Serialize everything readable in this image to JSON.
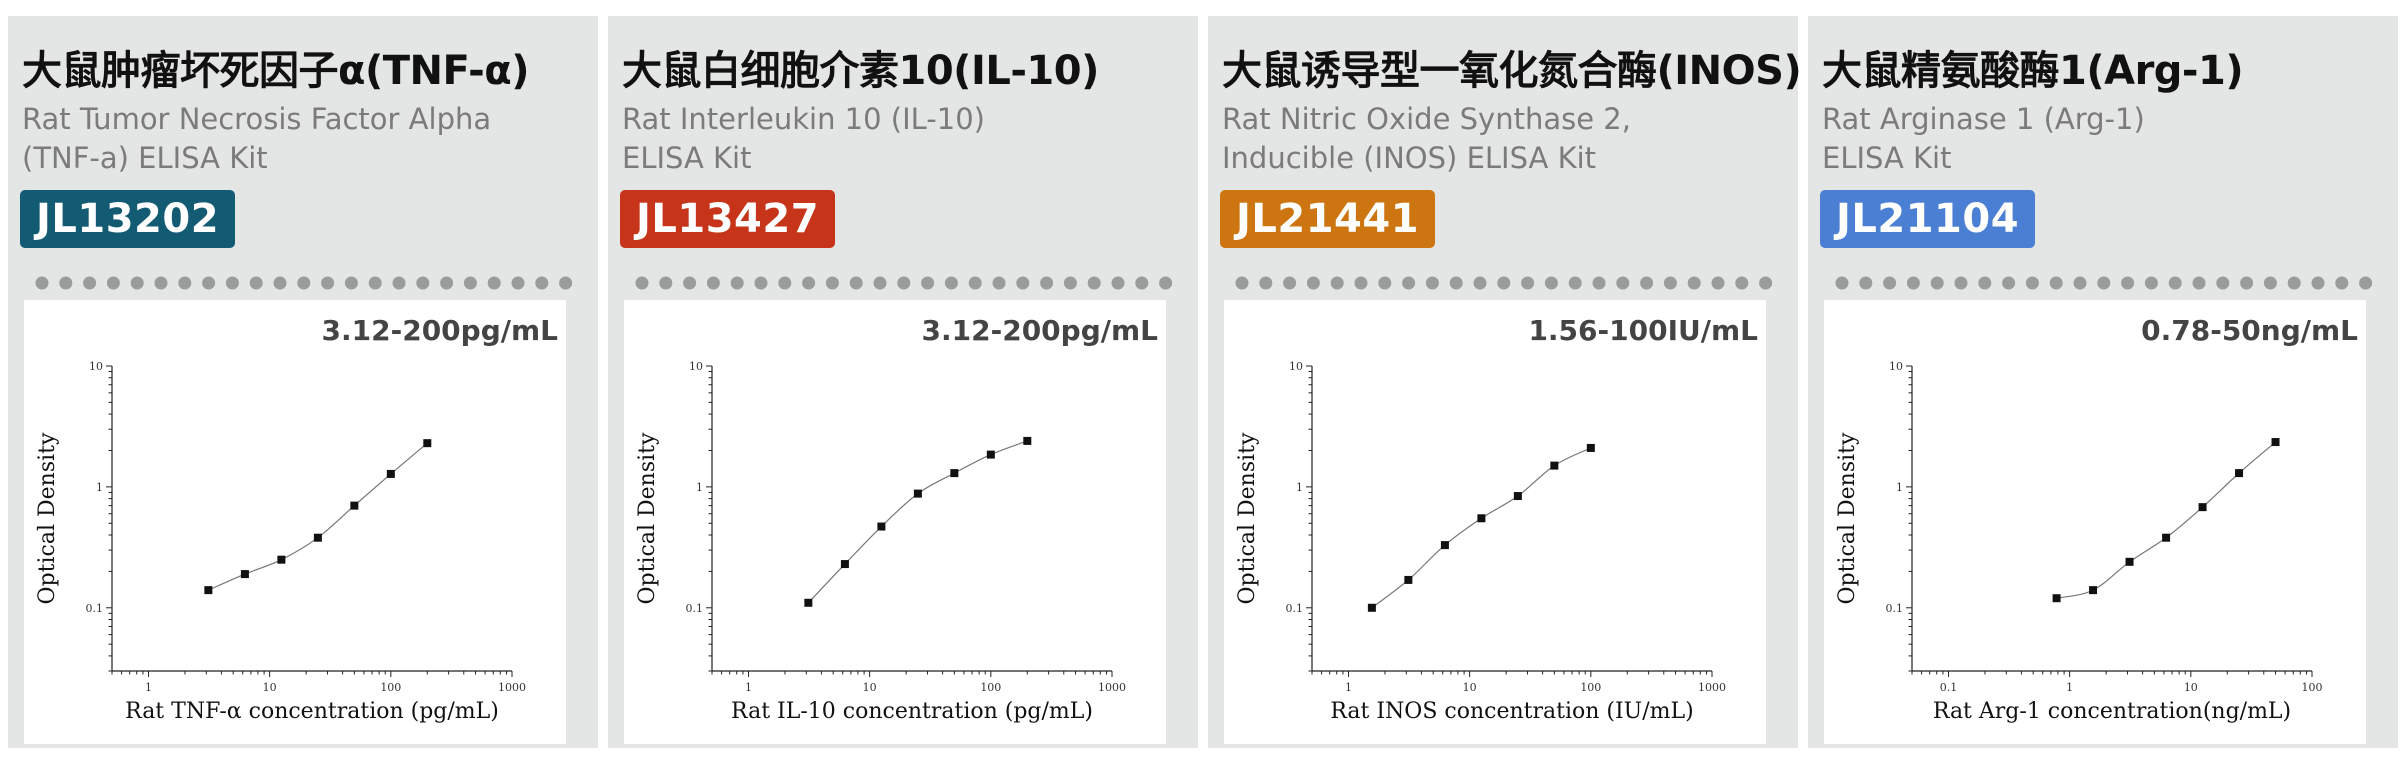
{
  "cards": [
    {
      "title_cn": "大鼠肿瘤坏死因子α(TNF-α)",
      "title_en_line1": "Rat Tumor Necrosis Factor Alpha",
      "title_en_line2": "(TNF-a) ELISA Kit",
      "code": "JL13202",
      "badge_color": "#135a73",
      "range": "3.12-200pg/mL",
      "chart_data": {
        "type": "scatter",
        "xscale": "log",
        "yscale": "log",
        "xlim": [
          0.5,
          1000
        ],
        "ylim": [
          0.03,
          10
        ],
        "xticks": [
          1,
          10,
          100,
          1000
        ],
        "xtick_labels": [
          "1",
          "10",
          "100",
          "1000"
        ],
        "yticks": [
          0.1,
          1,
          10
        ],
        "ytick_labels": [
          "0.1",
          "1",
          "10"
        ],
        "xlabel": "Rat TNF-α concentration (pg/mL)",
        "ylabel": "Optical Density",
        "x": [
          3.12,
          6.25,
          12.5,
          25,
          50,
          100,
          200
        ],
        "y": [
          0.14,
          0.19,
          0.25,
          0.38,
          0.7,
          1.28,
          2.3
        ]
      }
    },
    {
      "title_cn": "大鼠白细胞介素10(IL-10)",
      "title_en_line1": "Rat Interleukin 10 (IL-10)",
      "title_en_line2": "ELISA Kit",
      "code": "JL13427",
      "badge_color": "#c6341a",
      "range": "3.12-200pg/mL",
      "chart_data": {
        "type": "scatter",
        "xscale": "log",
        "yscale": "log",
        "xlim": [
          0.5,
          1000
        ],
        "ylim": [
          0.03,
          10
        ],
        "xticks": [
          1,
          10,
          100,
          1000
        ],
        "xtick_labels": [
          "1",
          "10",
          "100",
          "1000"
        ],
        "yticks": [
          0.1,
          1,
          10
        ],
        "ytick_labels": [
          "0.1",
          "1",
          "10"
        ],
        "xlabel": "Rat IL-10 concentration (pg/mL)",
        "ylabel": "Optical Density",
        "x": [
          3.12,
          6.25,
          12.5,
          25,
          50,
          100,
          200
        ],
        "y": [
          0.11,
          0.23,
          0.47,
          0.88,
          1.3,
          1.85,
          2.4
        ]
      }
    },
    {
      "title_cn": "大鼠诱导型一氧化氮合酶(INOS)",
      "title_en_line1": "Rat Nitric Oxide Synthase 2,",
      "title_en_line2": "Inducible (INOS) ELISA Kit",
      "code": "JL21441",
      "badge_color": "#cd7510",
      "range": "1.56-100IU/mL",
      "chart_data": {
        "type": "scatter",
        "xscale": "log",
        "yscale": "log",
        "xlim": [
          0.5,
          1000
        ],
        "ylim": [
          0.03,
          10
        ],
        "xticks": [
          1,
          10,
          100,
          1000
        ],
        "xtick_labels": [
          "1",
          "10",
          "100",
          "1000"
        ],
        "yticks": [
          0.1,
          1,
          10
        ],
        "ytick_labels": [
          "0.1",
          "1",
          "10"
        ],
        "xlabel": "Rat INOS concentration (IU/mL)",
        "ylabel": "Optical Density",
        "x": [
          1.56,
          3.12,
          6.25,
          12.5,
          25,
          50,
          100
        ],
        "y": [
          0.1,
          0.17,
          0.33,
          0.55,
          0.84,
          1.5,
          2.1
        ]
      }
    },
    {
      "title_cn": "大鼠精氨酸酶1(Arg-1)",
      "title_en_line1": "Rat Arginase 1 (Arg-1)",
      "title_en_line2": "ELISA Kit",
      "code": "JL21104",
      "badge_color": "#4a7fd4",
      "range": "0.78-50ng/mL",
      "chart_data": {
        "type": "scatter",
        "xscale": "log",
        "yscale": "log",
        "xlim": [
          0.05,
          100
        ],
        "ylim": [
          0.03,
          10
        ],
        "xticks": [
          0.1,
          1,
          10,
          100
        ],
        "xtick_labels": [
          "0.1",
          "1",
          "10",
          "100"
        ],
        "yticks": [
          0.1,
          1,
          10
        ],
        "ytick_labels": [
          "0.1",
          "1",
          "10"
        ],
        "xlabel": "Rat Arg-1 concentration(ng/mL)",
        "ylabel": "Optical Density",
        "x": [
          0.78,
          1.56,
          3.12,
          6.25,
          12.5,
          25,
          50
        ],
        "y": [
          0.12,
          0.14,
          0.24,
          0.38,
          0.68,
          1.3,
          2.35
        ]
      }
    }
  ],
  "dot_color": "#9a9b9b",
  "point_color": "#111111",
  "curve_color": "#777777"
}
